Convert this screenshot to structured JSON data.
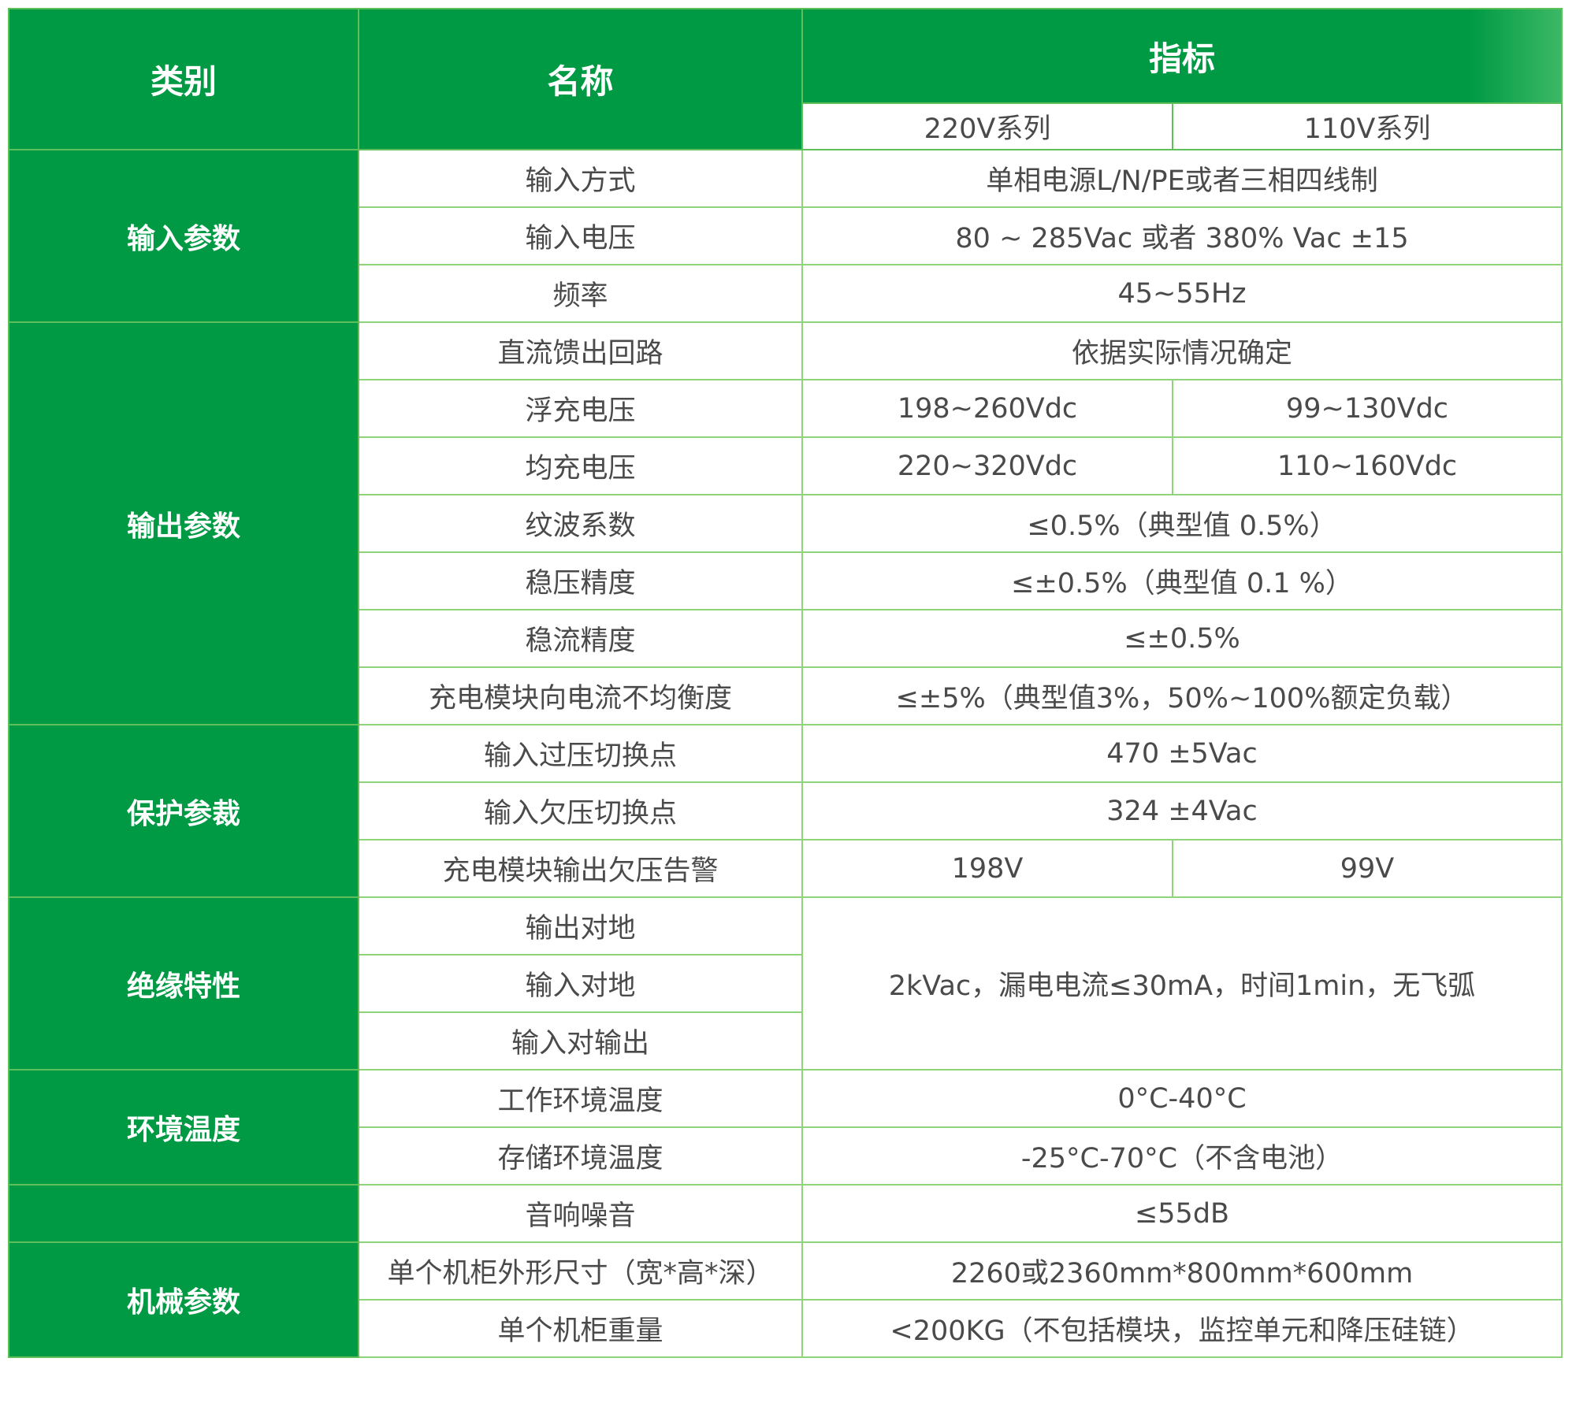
{
  "header": {
    "category": "类别",
    "name": "名称",
    "spec": "指标",
    "series_220": "220V系列",
    "series_110": "110V系列"
  },
  "colors": {
    "header_green": "#009a44",
    "border_green": "#8fd47a",
    "text": "#4a4a4a"
  },
  "groups": [
    {
      "category": "输入参数",
      "rows": [
        {
          "name": "输入方式",
          "value": "单相电源L/N/PE或者三相四线制"
        },
        {
          "name": "输入电压",
          "value": "80 ~ 285Vac 或者 380% Vac ±15"
        },
        {
          "name": "频率",
          "value": "45~55Hz"
        }
      ]
    },
    {
      "category": "输出参数",
      "rows": [
        {
          "name": "直流馈出回路",
          "value": "依据实际情况确定"
        },
        {
          "name": "浮充电压",
          "v220": "198~260Vdc",
          "v110": "99~130Vdc"
        },
        {
          "name": "均充电压",
          "v220": "220~320Vdc",
          "v110": "110~160Vdc"
        },
        {
          "name": "纹波系数",
          "value": "≤0.5%（典型值 0.5%）"
        },
        {
          "name": "稳压精度",
          "value": "≤±0.5%（典型值 0.1 %）"
        },
        {
          "name": "稳流精度",
          "value": "≤±0.5%"
        },
        {
          "name": "充电模块向电流不均衡度",
          "value": "≤±5%（典型值3%，50%~100%额定负载）"
        }
      ]
    },
    {
      "category": "保护参裁",
      "rows": [
        {
          "name": "输入过压切换点",
          "value": "470 ±5Vac"
        },
        {
          "name": "输入欠压切换点",
          "value": "324 ±4Vac"
        },
        {
          "name": "充电模块输出欠压告警",
          "v220": "198V",
          "v110": "99V"
        }
      ]
    },
    {
      "category": "绝缘特性",
      "shared_value": "2kVac，漏电电流≤30mA，时间1min，无飞弧",
      "rows": [
        {
          "name": "输出对地"
        },
        {
          "name": "输入对地"
        },
        {
          "name": "输入对输出"
        }
      ]
    },
    {
      "category": "环境温度",
      "rows": [
        {
          "name": "工作环境温度",
          "value": "0°C-40°C"
        },
        {
          "name": "存储环境温度",
          "value": "-25°C-70°C（不含电池）"
        }
      ]
    },
    {
      "category": "",
      "rows": [
        {
          "name": "音响噪音",
          "value": "≤55dB"
        }
      ]
    },
    {
      "category": "机械参数",
      "rows": [
        {
          "name": "单个机柜外形尺寸（宽*高*深）",
          "value": "2260或2360mm*800mm*600mm"
        },
        {
          "name": "单个机柜重量",
          "value": "<200KG（不包括模块，监控单元和降压硅链）"
        }
      ]
    }
  ]
}
